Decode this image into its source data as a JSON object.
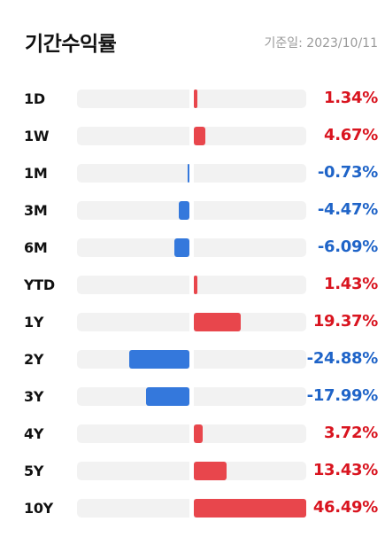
{
  "header": {
    "title": "기간수익률",
    "base_date": "기준일: 2023/10/11"
  },
  "colors": {
    "positive_bar": "#e8464c",
    "negative_bar": "#3478dc",
    "positive_text": "#d9141f",
    "negative_text": "#1f64c8",
    "track": "#f2f2f2"
  },
  "chart_data": {
    "type": "bar",
    "orientation": "horizontal",
    "categories": [
      "1D",
      "1W",
      "1M",
      "3M",
      "6M",
      "YTD",
      "1Y",
      "2Y",
      "3Y",
      "4Y",
      "5Y",
      "10Y"
    ],
    "values": [
      1.34,
      4.67,
      -0.73,
      -4.47,
      -6.09,
      1.43,
      19.37,
      -24.88,
      -17.99,
      3.72,
      13.43,
      46.49
    ],
    "labels": [
      "1.34%",
      "4.67%",
      "-0.73%",
      "-4.47%",
      "-6.09%",
      "1.43%",
      "19.37%",
      "-24.88%",
      "-17.99%",
      "3.72%",
      "13.43%",
      "46.49%"
    ],
    "unit": "%"
  }
}
